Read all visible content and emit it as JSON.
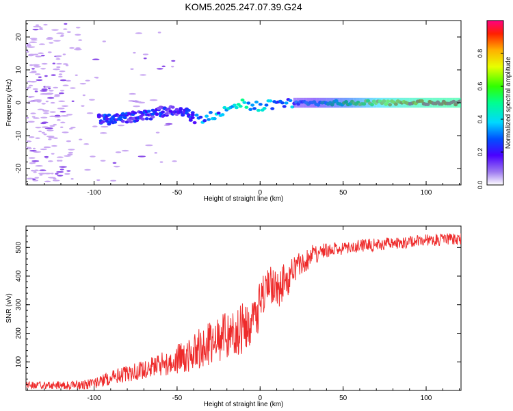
{
  "figure_title": "KOM5.2025.247.07.39.G24",
  "colors": {
    "snr_line": "#ee2b2b",
    "axis": "#000000",
    "scatter_light": "#c9a8f2",
    "scatter_mid": "#8a4be8"
  },
  "chart_data": [
    {
      "type": "heatmap",
      "name": "spectrogram",
      "title": "KOM5.2025.247.07.39.G24",
      "xlabel": "Height of straight line (km)",
      "ylabel": "Frequency (Hz)",
      "xlim": [
        -141,
        121
      ],
      "ylim": [
        -25,
        25
      ],
      "xticks": [
        -100,
        -50,
        0,
        50,
        100
      ],
      "yticks": [
        -20,
        -10,
        0,
        10,
        20
      ],
      "colorbar": {
        "label": "Normalized spectral amplitude",
        "range": [
          0,
          1
        ],
        "ticks": [
          "0.0",
          "0.2",
          "0.4",
          "0.6",
          "0.8"
        ],
        "colormap": "rainbow"
      },
      "ridge": {
        "x": [
          -97,
          -90,
          -80,
          -70,
          -60,
          -50,
          -45,
          -40,
          -35,
          -30,
          -25,
          -20,
          -15,
          -10,
          -5,
          0,
          5,
          10,
          20,
          30,
          40,
          50,
          60,
          70,
          80,
          90,
          100,
          110,
          121
        ],
        "freq": [
          -5,
          -5,
          -4.5,
          -4,
          -3,
          -2,
          -3,
          -4.5,
          -5,
          -4.5,
          -3.5,
          -2.5,
          -1,
          0,
          -1,
          -1.5,
          -0.5,
          -0.5,
          -0.3,
          -0.2,
          0,
          0,
          0,
          0,
          0,
          0,
          0,
          0,
          0
        ],
        "amplitude": [
          0.2,
          0.22,
          0.2,
          0.2,
          0.18,
          0.15,
          0.2,
          0.25,
          0.28,
          0.35,
          0.3,
          0.35,
          0.4,
          0.45,
          0.35,
          0.4,
          0.35,
          0.3,
          0.3,
          0.35,
          0.45,
          0.55,
          0.65,
          0.75,
          0.85,
          0.92,
          0.95,
          0.98,
          1.0
        ]
      },
      "scatter_noise_region": [
        -141,
        -110
      ]
    },
    {
      "type": "line",
      "name": "snr",
      "xlabel": "Height of straight line (km)",
      "ylabel": "SNR (v/v)",
      "xlim": [
        -141,
        121
      ],
      "ylim": [
        0,
        575
      ],
      "xticks": [
        -100,
        -50,
        0,
        50,
        100
      ],
      "yticks": [
        100,
        200,
        300,
        400,
        500
      ],
      "trend": {
        "x": [
          -141,
          -120,
          -105,
          -100,
          -90,
          -80,
          -70,
          -60,
          -50,
          -40,
          -30,
          -20,
          -10,
          -5,
          0,
          5,
          10,
          15,
          20,
          25,
          30,
          40,
          50,
          60,
          70,
          80,
          90,
          100,
          110,
          121
        ],
        "y": [
          18,
          16,
          18,
          25,
          45,
          60,
          75,
          90,
          110,
          140,
          165,
          185,
          220,
          260,
          310,
          350,
          360,
          380,
          410,
          440,
          470,
          490,
          495,
          505,
          510,
          515,
          520,
          525,
          528,
          530
        ]
      },
      "noise_amplitude": {
        "x": [
          -141,
          -100,
          -60,
          -40,
          -20,
          -10,
          0,
          10,
          20,
          40,
          121
        ],
        "amp": [
          12,
          20,
          40,
          70,
          90,
          90,
          100,
          80,
          55,
          25,
          20
        ]
      },
      "sample_count": 1050
    }
  ]
}
